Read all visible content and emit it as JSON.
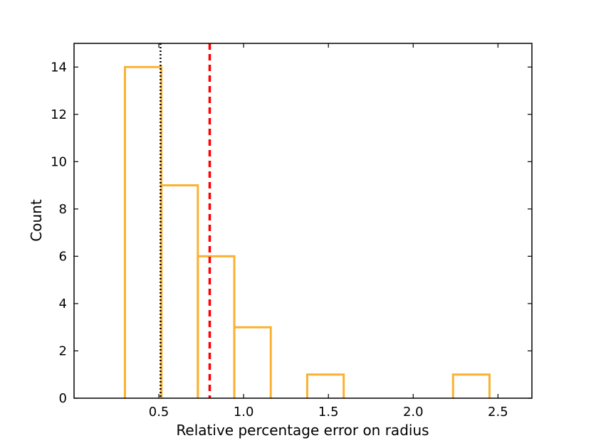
{
  "chart_data": {
    "type": "bar",
    "style": "step-histogram",
    "xlabel": "Relative percentage error on radius",
    "ylabel": "Count",
    "xlim": [
      0.0,
      2.7
    ],
    "ylim": [
      0,
      15
    ],
    "grid": false,
    "x_ticks": [
      {
        "value": 0.5,
        "label": "0.5"
      },
      {
        "value": 1.0,
        "label": "1.0"
      },
      {
        "value": 1.5,
        "label": "1.5"
      },
      {
        "value": 2.0,
        "label": "2.0"
      },
      {
        "value": 2.5,
        "label": "2.5"
      }
    ],
    "y_ticks": [
      {
        "value": 0,
        "label": "0"
      },
      {
        "value": 2,
        "label": "2"
      },
      {
        "value": 4,
        "label": "4"
      },
      {
        "value": 6,
        "label": "6"
      },
      {
        "value": 8,
        "label": "8"
      },
      {
        "value": 10,
        "label": "10"
      },
      {
        "value": 12,
        "label": "12"
      },
      {
        "value": 14,
        "label": "14"
      }
    ],
    "bin_edges": [
      0.3,
      0.515,
      0.73,
      0.945,
      1.16,
      1.375,
      1.59,
      1.805,
      2.02,
      2.235,
      2.45
    ],
    "values": [
      14,
      9,
      6,
      3,
      0,
      1,
      0,
      0,
      0,
      1
    ],
    "reference_lines": [
      {
        "x": 0.51,
        "style": "dotted",
        "color": "#000000"
      },
      {
        "x": 0.8,
        "style": "dashed",
        "color": "#ff0000"
      }
    ],
    "colors": {
      "histogram": "#fbb131",
      "axes": "#000000"
    }
  }
}
